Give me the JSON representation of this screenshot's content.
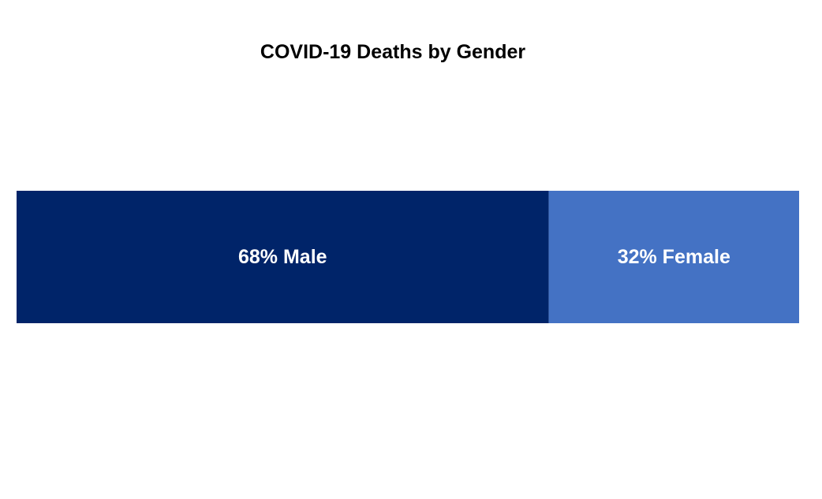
{
  "chart_data": {
    "type": "bar",
    "orientation": "horizontal-stacked-100",
    "title": "COVID-19 Deaths by Gender",
    "xlabel": "",
    "ylabel": "",
    "grid": false,
    "legend": "none",
    "xlim": [
      0,
      100
    ],
    "series": [
      {
        "name": "Male",
        "value": 68,
        "label": "68% Male",
        "color": "#002469"
      },
      {
        "name": "Female",
        "value": 32,
        "label": "32% Female",
        "color": "#4472C4"
      }
    ]
  }
}
